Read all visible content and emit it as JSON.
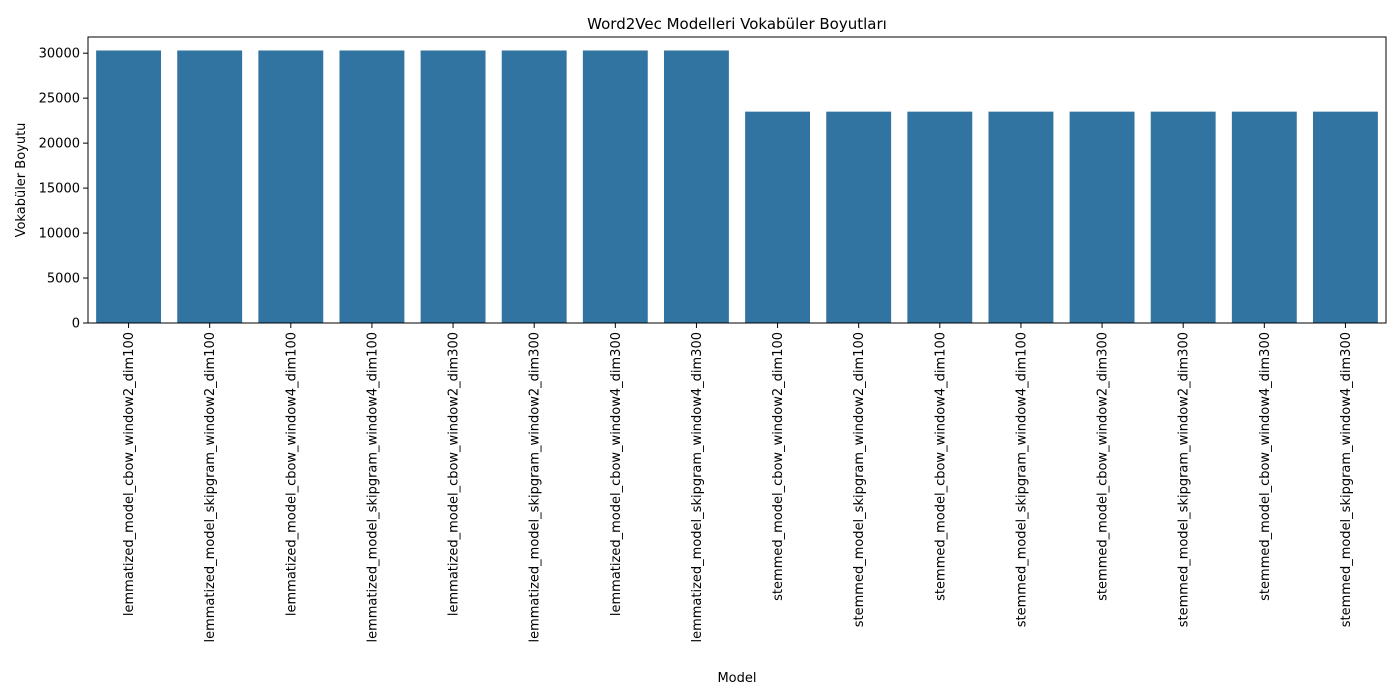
{
  "chart_data": {
    "type": "bar",
    "title": "Word2Vec Modelleri Vokabüler Boyutları",
    "xlabel": "Model",
    "ylabel": "Vokabüler Boyutu",
    "categories": [
      "lemmatized_model_cbow_window2_dim100",
      "lemmatized_model_skipgram_window2_dim100",
      "lemmatized_model_cbow_window4_dim100",
      "lemmatized_model_skipgram_window4_dim100",
      "lemmatized_model_cbow_window2_dim300",
      "lemmatized_model_skipgram_window2_dim300",
      "lemmatized_model_cbow_window4_dim300",
      "lemmatized_model_skipgram_window4_dim300",
      "stemmed_model_cbow_window2_dim100",
      "stemmed_model_skipgram_window2_dim100",
      "stemmed_model_cbow_window4_dim100",
      "stemmed_model_skipgram_window4_dim100",
      "stemmed_model_cbow_window2_dim300",
      "stemmed_model_skipgram_window2_dim300",
      "stemmed_model_cbow_window4_dim300",
      "stemmed_model_skipgram_window4_dim300"
    ],
    "values": [
      30300,
      30300,
      30300,
      30300,
      30300,
      30300,
      30300,
      30300,
      23500,
      23500,
      23500,
      23500,
      23500,
      23500,
      23500,
      23500
    ],
    "yticks": [
      0,
      5000,
      10000,
      15000,
      20000,
      25000,
      30000
    ],
    "ylim": [
      0,
      31800
    ],
    "grid": false,
    "legend": "none",
    "bar_color": "#3274a1"
  }
}
